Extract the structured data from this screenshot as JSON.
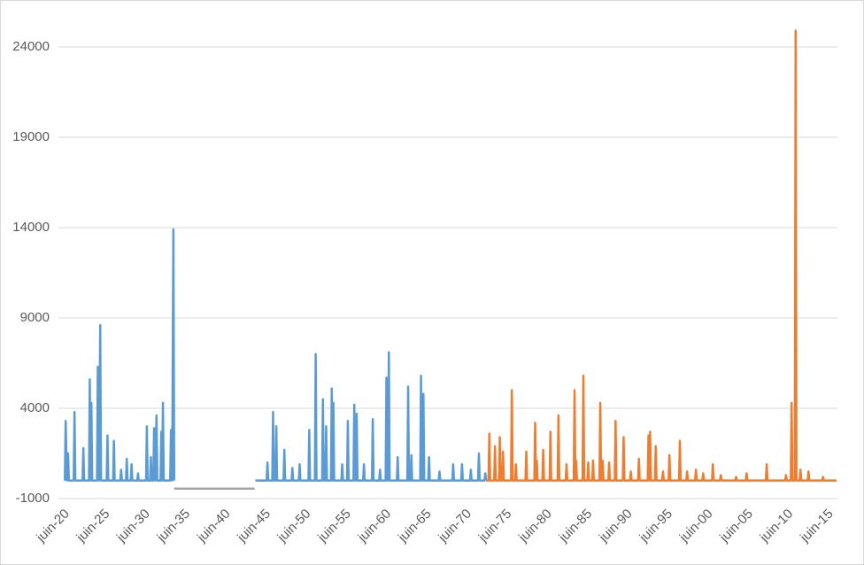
{
  "chart_data": {
    "type": "line",
    "xlim": [
      1919.2,
      2016.1
    ],
    "xticks": [
      {
        "value": 1920,
        "label": "juin-20"
      },
      {
        "value": 1925,
        "label": "juin-25"
      },
      {
        "value": 1930,
        "label": "juin-30"
      },
      {
        "value": 1935,
        "label": "juin-35"
      },
      {
        "value": 1940,
        "label": "juin-40"
      },
      {
        "value": 1945,
        "label": "juin-45"
      },
      {
        "value": 1950,
        "label": "juin-50"
      },
      {
        "value": 1955,
        "label": "juin-55"
      },
      {
        "value": 1960,
        "label": "juin-60"
      },
      {
        "value": 1965,
        "label": "juin-65"
      },
      {
        "value": 1970,
        "label": "juin-70"
      },
      {
        "value": 1975,
        "label": "juin-75"
      },
      {
        "value": 1980,
        "label": "juin-80"
      },
      {
        "value": 1985,
        "label": "juin-85"
      },
      {
        "value": 1990,
        "label": "juin-90"
      },
      {
        "value": 1995,
        "label": "juin-95"
      },
      {
        "value": 2000,
        "label": "juin-00"
      },
      {
        "value": 2005,
        "label": "juin-05"
      },
      {
        "value": 2010,
        "label": "juin-10"
      },
      {
        "value": 2015,
        "label": "juin-15"
      }
    ],
    "ylim": [
      -1000,
      26600
    ],
    "yticks": [
      -1000,
      4000,
      9000,
      14000,
      19000,
      24000
    ],
    "grid": true,
    "series": [
      {
        "color": "#5b9bd5",
        "x": [
          1920.0,
          1920.1,
          1920.25,
          1920.4,
          1920.5,
          1921.1,
          1921.2,
          1921.3,
          1922.2,
          1922.3,
          1922.4,
          1923.0,
          1923.1,
          1923.2,
          1923.3,
          1923.4,
          1924.0,
          1924.1,
          1924.25,
          1924.4,
          1924.5,
          1925.2,
          1925.3,
          1925.4,
          1926.0,
          1926.1,
          1926.2,
          1926.9,
          1927.0,
          1927.1,
          1927.6,
          1927.7,
          1927.8,
          1928.2,
          1928.3,
          1928.4,
          1929.0,
          1929.1,
          1929.2,
          1930.1,
          1930.2,
          1930.3,
          1930.6,
          1930.7,
          1930.8,
          1931.0,
          1931.1,
          1931.25,
          1931.4,
          1931.5,
          1931.9,
          1932.0,
          1932.1,
          1932.2,
          1932.3,
          1933.1,
          1933.2,
          1933.35,
          1933.5,
          1933.6,
          1938.5,
          1943.7,
          1944.9,
          1945.1,
          1945.2,
          1945.3,
          1945.8,
          1945.9,
          1946.0,
          1946.2,
          1946.3,
          1946.4,
          1947.2,
          1947.3,
          1947.4,
          1948.2,
          1948.3,
          1948.4,
          1949.1,
          1949.2,
          1949.3,
          1950.3,
          1950.4,
          1950.5,
          1951.1,
          1951.2,
          1951.3,
          1952.0,
          1952.1,
          1952.2,
          1952.4,
          1952.5,
          1952.6,
          1953.1,
          1953.2,
          1953.3,
          1953.4,
          1953.5,
          1954.4,
          1954.5,
          1954.6,
          1955.1,
          1955.2,
          1955.3,
          1955.9,
          1956.0,
          1956.1,
          1956.2,
          1956.3,
          1956.4,
          1957.1,
          1957.2,
          1957.3,
          1958.2,
          1958.3,
          1958.4,
          1959.1,
          1959.2,
          1959.3,
          1959.9,
          1960.0,
          1960.1,
          1960.2,
          1960.3,
          1960.4,
          1961.3,
          1961.4,
          1961.5,
          1962.6,
          1962.7,
          1962.8,
          1963.0,
          1963.1,
          1963.2,
          1964.2,
          1964.3,
          1964.4,
          1964.5,
          1964.6,
          1964.7,
          1965.2,
          1965.3,
          1965.4,
          1966.5,
          1966.6,
          1966.7,
          1968.2,
          1968.3,
          1968.4,
          1969.3,
          1969.4,
          1969.5,
          1970.4,
          1970.5,
          1970.6,
          1971.4,
          1971.5,
          1971.6,
          1972.2,
          1972.3,
          1972.4
        ],
        "values": [
          0,
          3300,
          0,
          1500,
          0,
          0,
          3800,
          0,
          0,
          1800,
          0,
          0,
          5600,
          0,
          4300,
          0,
          0,
          6300,
          0,
          8600,
          0,
          0,
          2500,
          0,
          0,
          2200,
          0,
          0,
          600,
          0,
          0,
          1200,
          0,
          0,
          900,
          0,
          0,
          400,
          0,
          0,
          3000,
          0,
          0,
          1300,
          0,
          0,
          2900,
          0,
          3600,
          0,
          0,
          2700,
          0,
          4300,
          0,
          0,
          2800,
          0,
          13900,
          0,
          null,
          0,
          0,
          0,
          1000,
          0,
          0,
          3800,
          0,
          0,
          3000,
          0,
          0,
          1700,
          0,
          0,
          700,
          0,
          0,
          900,
          0,
          0,
          2800,
          0,
          0,
          7000,
          0,
          0,
          4500,
          0,
          0,
          3000,
          0,
          0,
          5100,
          0,
          4300,
          0,
          0,
          900,
          0,
          0,
          3300,
          0,
          0,
          4200,
          0,
          0,
          3700,
          0,
          0,
          900,
          0,
          0,
          3400,
          0,
          0,
          600,
          0,
          0,
          5700,
          0,
          0,
          7100,
          0,
          0,
          1300,
          0,
          0,
          5200,
          0,
          0,
          1400,
          0,
          0,
          5800,
          0,
          0,
          4800,
          0,
          0,
          1300,
          0,
          0,
          500,
          0,
          0,
          900,
          0,
          0,
          900,
          0,
          0,
          600,
          0,
          0,
          1500,
          0,
          0,
          400,
          0
        ]
      },
      {
        "color": "#ed7d31",
        "x": [
          1972.4,
          1972.7,
          1972.8,
          1972.9,
          1973.4,
          1973.5,
          1973.6,
          1974.0,
          1974.1,
          1974.2,
          1974.4,
          1974.5,
          1974.6,
          1975.5,
          1975.6,
          1975.7,
          1976.0,
          1976.1,
          1976.2,
          1977.3,
          1977.4,
          1977.5,
          1978.4,
          1978.5,
          1978.6,
          1978.7,
          1978.8,
          1979.4,
          1979.5,
          1979.6,
          1980.3,
          1980.4,
          1980.5,
          1981.3,
          1981.4,
          1981.5,
          1982.3,
          1982.4,
          1982.5,
          1983.3,
          1983.4,
          1983.5,
          1983.6,
          1983.7,
          1984.4,
          1984.5,
          1984.6,
          1985.0,
          1985.1,
          1985.2,
          1985.6,
          1985.7,
          1985.8,
          1986.5,
          1986.6,
          1986.7,
          1986.8,
          1986.9,
          1987.0,
          1987.6,
          1987.7,
          1987.8,
          1988.4,
          1988.5,
          1988.6,
          1989.4,
          1989.5,
          1989.6,
          1990.3,
          1990.4,
          1990.5,
          1991.3,
          1991.4,
          1991.5,
          1992.5,
          1992.6,
          1992.7,
          1992.8,
          1992.9,
          1993.4,
          1993.5,
          1993.6,
          1994.3,
          1994.4,
          1994.5,
          1995.1,
          1995.2,
          1995.3,
          1996.4,
          1996.5,
          1996.6,
          1997.3,
          1997.4,
          1997.5,
          1998.4,
          1998.5,
          1998.6,
          1999.3,
          1999.4,
          1999.5,
          2000.5,
          2000.6,
          2000.7,
          2001.5,
          2001.6,
          2001.7,
          2003.4,
          2003.5,
          2003.6,
          2004.7,
          2004.8,
          2004.9,
          2007.2,
          2007.3,
          2007.4,
          2009.6,
          2009.7,
          2009.8,
          2010.3,
          2010.4,
          2010.5,
          2010.8,
          2010.9,
          2011.0,
          2011.4,
          2011.5,
          2011.6,
          2012.4,
          2012.5,
          2012.6,
          2014.2,
          2014.3,
          2014.4,
          2016.0
        ],
        "values": [
          0,
          0,
          2600,
          0,
          0,
          1900,
          0,
          0,
          2400,
          0,
          0,
          1600,
          0,
          0,
          5000,
          0,
          0,
          900,
          0,
          0,
          1600,
          0,
          0,
          3200,
          0,
          1100,
          0,
          0,
          1700,
          0,
          0,
          2700,
          0,
          0,
          3600,
          0,
          0,
          900,
          0,
          0,
          5000,
          0,
          1100,
          0,
          0,
          5800,
          0,
          0,
          1000,
          0,
          0,
          1100,
          0,
          0,
          4300,
          0,
          0,
          1100,
          0,
          0,
          1000,
          0,
          0,
          3300,
          0,
          0,
          2400,
          0,
          0,
          500,
          0,
          0,
          1200,
          0,
          0,
          2500,
          0,
          2700,
          0,
          0,
          1900,
          0,
          0,
          500,
          0,
          0,
          1400,
          0,
          0,
          2200,
          0,
          0,
          500,
          0,
          0,
          600,
          0,
          0,
          400,
          0,
          0,
          900,
          0,
          0,
          300,
          0,
          0,
          200,
          0,
          0,
          400,
          0,
          0,
          900,
          0,
          0,
          300,
          0,
          0,
          4300,
          0,
          0,
          24900,
          0,
          0,
          600,
          0,
          0,
          500,
          0,
          0,
          200,
          0,
          0
        ]
      },
      {
        "color": "#a5a5a5",
        "x": [
          1933.6,
          1943.6
        ],
        "values": [
          -450,
          -450
        ]
      }
    ]
  }
}
